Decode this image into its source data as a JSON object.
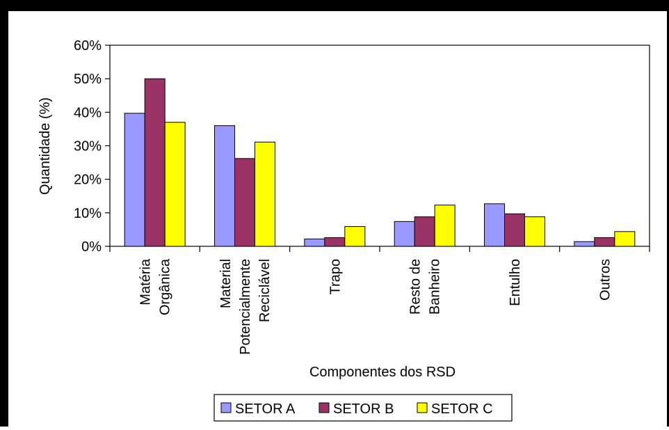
{
  "chart_data": {
    "type": "bar",
    "title": "",
    "xlabel": "Componentes dos RSD",
    "ylabel": "Quantidade (%)",
    "ylim": [
      0,
      60
    ],
    "y_ticks": [
      "0%",
      "10%",
      "20%",
      "30%",
      "40%",
      "50%",
      "60%"
    ],
    "y_tick_values": [
      0,
      10,
      20,
      30,
      40,
      50,
      60
    ],
    "grid": false,
    "legend_position": "bottom",
    "categories": [
      [
        "Matéria",
        "Orgânica"
      ],
      [
        "Material",
        "Potencialmente",
        "Reciclável"
      ],
      [
        "Trapo"
      ],
      [
        "Resto de",
        "Banheiro"
      ],
      [
        "Entulho"
      ],
      [
        "Outros"
      ]
    ],
    "series": [
      {
        "name": "SETOR A",
        "color": "#9999ff",
        "values": [
          39.7,
          36.0,
          2.2,
          7.4,
          12.7,
          1.4
        ]
      },
      {
        "name": "SETOR B",
        "color": "#993366",
        "values": [
          50.0,
          26.2,
          2.6,
          8.8,
          9.7,
          2.6
        ]
      },
      {
        "name": "SETOR C",
        "color": "#ffff00",
        "values": [
          37.0,
          31.1,
          5.9,
          12.3,
          8.8,
          4.4
        ]
      }
    ]
  }
}
